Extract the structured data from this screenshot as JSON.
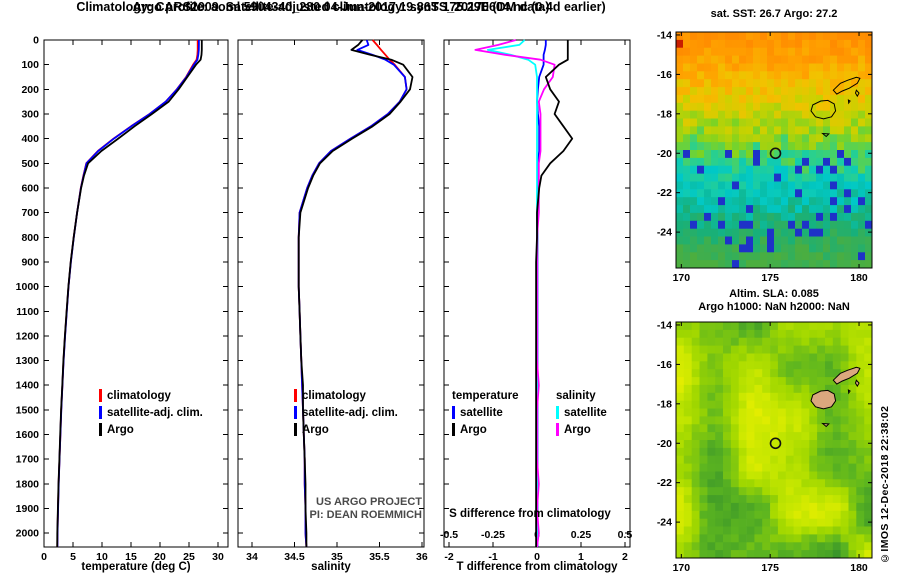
{
  "titles": {
    "line1": "Argo profile: aoml 5904340_280 04-Jun-2017 19.86S 175.29E (DM data)",
    "line2": "Climatology: CARS2009. Satellite-adjusted climatology: synTS_20170604.nc (0.4d earlier)"
  },
  "watermark": {
    "line1": "US ARGO PROJECT",
    "line2": "PI: DEAN ROEMMICH"
  },
  "copyright": "©IMOS 12-Dec-2018 22:38:02",
  "depth_axis": {
    "ticks": [
      0,
      100,
      200,
      300,
      400,
      500,
      600,
      700,
      800,
      900,
      1000,
      1100,
      1200,
      1300,
      1400,
      1500,
      1600,
      1700,
      1800,
      1900,
      2000
    ],
    "lim": [
      0,
      2056
    ]
  },
  "chart_data": {
    "type": "line",
    "depth_m": [
      0,
      20,
      40,
      60,
      80,
      100,
      150,
      200,
      250,
      300,
      350,
      400,
      450,
      500,
      550,
      600,
      700,
      800,
      900,
      1000,
      1100,
      1200,
      1300,
      1400,
      1500,
      1600,
      1700,
      1800,
      1900,
      2000,
      2056
    ],
    "panels": [
      {
        "id": "temperature",
        "xlabel": "temperature (deg C)",
        "xticks": [
          0,
          5,
          10,
          15,
          20,
          25,
          30
        ],
        "xlim": [
          0,
          31.72
        ],
        "series": [
          {
            "name": "climatology",
            "color": "#ff0000",
            "values": [
              26.5,
              26.5,
              26.5,
              26.45,
              26.3,
              25.7,
              24.5,
              22.9,
              21.0,
              18.2,
              15.0,
              12.0,
              9.3,
              7.3,
              6.8,
              6.35,
              5.7,
              5.12,
              4.62,
              4.22,
              3.92,
              3.62,
              3.37,
              3.17,
              2.97,
              2.82,
              2.67,
              2.52,
              2.42,
              2.32,
              2.3
            ]
          },
          {
            "name": "satellite-adj. clim.",
            "color": "#0000ff",
            "values": [
              26.7,
              26.7,
              26.68,
              26.6,
              26.45,
              25.85,
              24.55,
              22.92,
              21.0,
              18.22,
              15.05,
              12.05,
              9.35,
              7.32,
              6.82,
              6.36,
              5.71,
              5.13,
              4.63,
              4.23,
              3.93,
              3.63,
              3.38,
              3.18,
              2.98,
              2.83,
              2.68,
              2.53,
              2.43,
              2.33,
              2.31
            ]
          },
          {
            "name": "Argo",
            "color": "#000000",
            "values": [
              27.2,
              27.2,
              27.2,
              27.15,
              27.0,
              26.2,
              24.7,
              23.2,
              21.5,
              18.6,
              15.6,
              12.8,
              9.9,
              7.6,
              6.9,
              6.4,
              5.7,
              5.12,
              4.6,
              4.2,
              3.9,
              3.6,
              3.35,
              3.15,
              2.95,
              2.8,
              2.65,
              2.5,
              2.4,
              2.3,
              2.28
            ]
          }
        ]
      },
      {
        "id": "salinity",
        "xlabel": "salinity",
        "xticks": [
          34,
          34.5,
          35,
          35.5,
          36
        ],
        "xlim": [
          33.835,
          36.025
        ],
        "series": [
          {
            "name": "climatology",
            "color": "#ff0000",
            "values": [
              35.42,
              35.47,
              35.52,
              35.57,
              35.62,
              35.68,
              35.8,
              35.82,
              35.74,
              35.6,
              35.4,
              35.16,
              34.93,
              34.79,
              34.71,
              34.65,
              34.56,
              34.55,
              34.55,
              34.55,
              34.56,
              34.57,
              34.58,
              34.59,
              34.6,
              34.61,
              34.62,
              34.62,
              34.63,
              34.63,
              34.64
            ]
          },
          {
            "name": "satellite-adj. clim.",
            "color": "#0000ff",
            "values": [
              35.35,
              35.37,
              35.24,
              35.42,
              35.57,
              35.67,
              35.8,
              35.82,
              35.74,
              35.6,
              35.4,
              35.16,
              34.93,
              34.79,
              34.71,
              34.65,
              34.56,
              34.55,
              34.55,
              34.55,
              34.56,
              34.57,
              34.58,
              34.59,
              34.6,
              34.61,
              34.62,
              34.62,
              34.63,
              34.63,
              34.64
            ]
          },
          {
            "name": "Argo",
            "color": "#000000",
            "values": [
              35.3,
              35.25,
              35.17,
              35.39,
              35.64,
              35.78,
              35.89,
              35.86,
              35.75,
              35.62,
              35.42,
              35.18,
              34.95,
              34.8,
              34.72,
              34.66,
              34.57,
              34.55,
              34.55,
              34.55,
              34.56,
              34.57,
              34.58,
              34.6,
              34.6,
              34.61,
              34.62,
              34.63,
              34.63,
              34.64,
              34.64
            ]
          }
        ]
      },
      {
        "id": "difference",
        "xlabel": "T difference from climatology",
        "xlabel_top": "S difference from climatology",
        "xticks": [
          -2,
          -1,
          0,
          1,
          2
        ],
        "xticks_top": [
          -0.5,
          -0.25,
          0,
          0.25,
          0.5
        ],
        "xlim": [
          -2.115,
          2.115
        ],
        "s_to_t_scale": 4,
        "legend_groups": [
          {
            "header": "temperature",
            "items": [
              {
                "name": "satellite",
                "color": "#0000ff"
              },
              {
                "name": "Argo",
                "color": "#000000"
              }
            ]
          },
          {
            "header": "salinity",
            "items": [
              {
                "name": "satellite",
                "color": "#00ffff"
              },
              {
                "name": "Argo",
                "color": "#ff00ff"
              }
            ]
          }
        ],
        "series": [
          {
            "name": "T satellite",
            "axis": "T",
            "color": "#0000ff",
            "values": [
              0.2,
              0.2,
              0.18,
              0.15,
              0.15,
              0.15,
              0.05,
              0.02,
              0.0,
              0.02,
              0.05,
              0.05,
              0.05,
              0.02,
              0.02,
              0.01,
              0.01,
              0.01,
              0.01,
              0.01,
              0.01,
              0.01,
              0.01,
              0.01,
              0.01,
              0.01,
              0.01,
              0.01,
              0.01,
              0.01,
              0.01
            ]
          },
          {
            "name": "S satellite",
            "axis": "S",
            "color": "#00ffff",
            "values": [
              -0.07,
              -0.1,
              -0.28,
              -0.15,
              -0.05,
              -0.01,
              0,
              0,
              0,
              0,
              0,
              0,
              0,
              0,
              0,
              0,
              0,
              0,
              0,
              0,
              0,
              0,
              0,
              0,
              0,
              0,
              0,
              0,
              0,
              0,
              0
            ]
          },
          {
            "name": "S Argo",
            "axis": "S",
            "color": "#ff00ff",
            "values": [
              -0.12,
              -0.22,
              -0.35,
              -0.18,
              0.02,
              0.1,
              0.09,
              0.04,
              0.01,
              0.02,
              0.02,
              0.02,
              0.02,
              0.01,
              0.01,
              0.01,
              0.01,
              0.0,
              0.0,
              0.0,
              0.0,
              0.0,
              0.0,
              0.01,
              0.0,
              0.0,
              0.0,
              0.01,
              0.0,
              0.01,
              0.0
            ]
          },
          {
            "name": "T Argo",
            "axis": "T",
            "color": "#000000",
            "values": [
              0.7,
              0.7,
              0.7,
              0.7,
              0.7,
              0.5,
              0.2,
              0.3,
              0.5,
              0.4,
              0.6,
              0.8,
              0.6,
              0.3,
              0.1,
              0.05,
              0.0,
              0.0,
              -0.02,
              -0.02,
              -0.02,
              -0.02,
              -0.02,
              -0.02,
              -0.02,
              -0.02,
              -0.02,
              -0.02,
              -0.02,
              -0.02,
              -0.02
            ]
          }
        ]
      }
    ]
  },
  "maps": {
    "coast": [
      [
        [
          177.85,
          -17.35
        ],
        [
          178.25,
          -17.32
        ],
        [
          178.6,
          -17.5
        ],
        [
          178.68,
          -17.85
        ],
        [
          178.45,
          -18.15
        ],
        [
          178.0,
          -18.25
        ],
        [
          177.55,
          -18.15
        ],
        [
          177.3,
          -17.85
        ],
        [
          177.4,
          -17.55
        ]
      ],
      [
        [
          178.55,
          -16.8
        ],
        [
          178.95,
          -16.45
        ],
        [
          179.35,
          -16.3
        ],
        [
          179.85,
          -16.15
        ],
        [
          180.05,
          -16.2
        ],
        [
          179.9,
          -16.45
        ],
        [
          179.45,
          -16.7
        ],
        [
          179.05,
          -16.85
        ],
        [
          178.75,
          -17.0
        ]
      ],
      [
        [
          179.85,
          -16.8
        ],
        [
          180.0,
          -16.95
        ],
        [
          179.9,
          -17.1
        ],
        [
          179.8,
          -16.95
        ]
      ],
      [
        [
          177.95,
          -19.0
        ],
        [
          178.3,
          -19.02
        ],
        [
          178.15,
          -19.15
        ]
      ],
      [
        [
          179.4,
          -17.3
        ],
        [
          179.5,
          -17.35
        ],
        [
          179.42,
          -17.45
        ]
      ]
    ],
    "sst": {
      "title": "sat. SST: 26.7 Argo: 27.2",
      "xticks": [
        170,
        175,
        180
      ],
      "yticks": [
        -14,
        -16,
        -18,
        -20,
        -22,
        -24
      ],
      "lonlim": [
        169.7,
        180.73
      ],
      "latlim": [
        -13.85,
        -25.82
      ],
      "marker": {
        "lon": 175.3,
        "lat": -20.0
      },
      "anomaly_color": "#c81e00",
      "speck_color": "#1e32c8",
      "palette": [
        {
          "t": 0.0,
          "c": "#ff8c00"
        },
        {
          "t": 0.12,
          "c": "#ffa200"
        },
        {
          "t": 0.25,
          "c": "#f2c200"
        },
        {
          "t": 0.36,
          "c": "#c8d200"
        },
        {
          "t": 0.46,
          "c": "#7ed321"
        },
        {
          "t": 0.55,
          "c": "#2bd08c"
        },
        {
          "t": 0.66,
          "c": "#00c8c8"
        },
        {
          "t": 0.8,
          "c": "#17b07a"
        },
        {
          "t": 1.0,
          "c": "#4cae3f"
        }
      ]
    },
    "sla": {
      "title1": "Altim. SLA: 0.085",
      "title2": "Argo h1000: NaN h2000: NaN",
      "xticks": [
        170,
        175,
        180
      ],
      "yticks": [
        -14,
        -16,
        -18,
        -20,
        -22,
        -24
      ],
      "lonlim": [
        169.7,
        180.73
      ],
      "latlim": [
        -13.85,
        -25.82
      ],
      "marker": {
        "lon": 175.3,
        "lat": -20.0
      },
      "island_fill": "#dba87e",
      "palette": [
        {
          "t": 0.0,
          "c": "#2e8b2e"
        },
        {
          "t": 0.3,
          "c": "#5cb520"
        },
        {
          "t": 0.55,
          "c": "#9ed600"
        },
        {
          "t": 0.75,
          "c": "#c3e600"
        },
        {
          "t": 1.0,
          "c": "#eef000"
        }
      ]
    }
  }
}
